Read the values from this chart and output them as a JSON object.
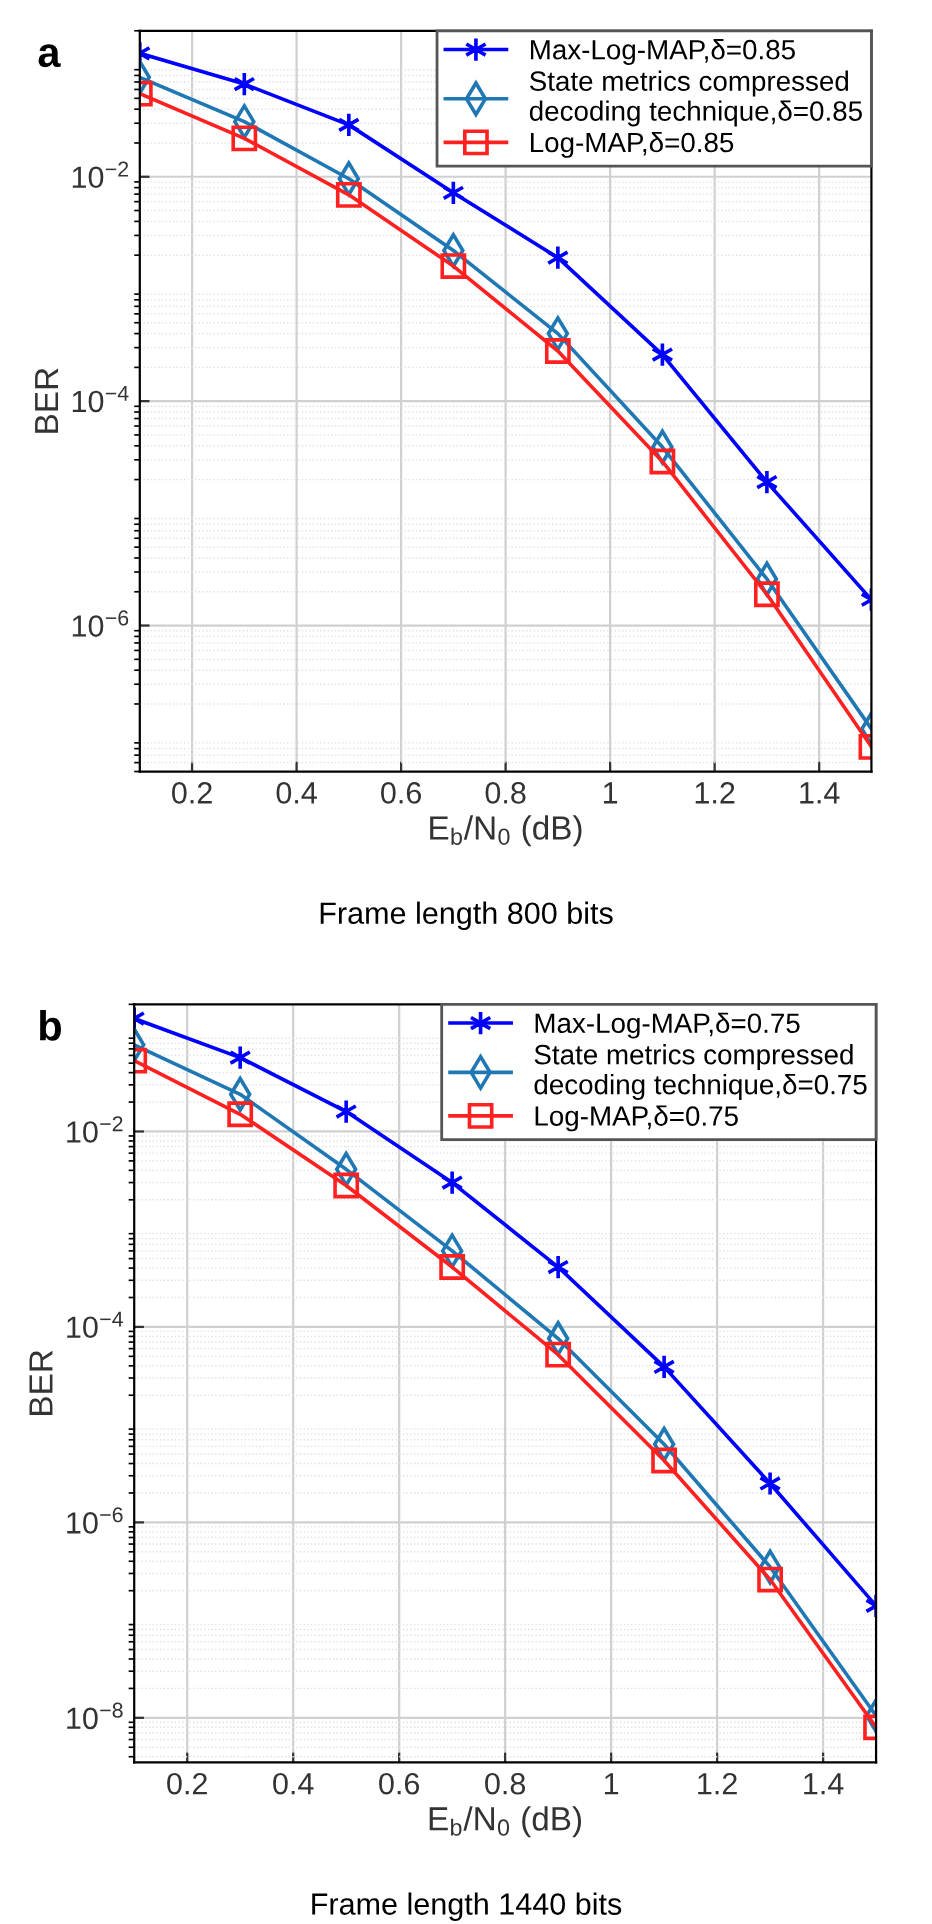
{
  "chart_data": [
    {
      "type": "line",
      "xlabel": "E$_{b}$/N$_{0}$ (dB)",
      "ylabel": "BER",
      "annotations": [
        "a",
        "Frame length 800 bits"
      ],
      "x": [
        0.1,
        0.3,
        0.5,
        0.7,
        0.9,
        1.1,
        1.3,
        1.5
      ],
      "series": [
        {
          "name": "Max-Log-MAP,δ=0.85",
          "color": "#0000ff",
          "marker": "cross",
          "values": [
            0.126,
            0.067,
            0.029,
            0.0072,
            0.0019,
            0.00026,
            1.9e-05,
            1.7e-06
          ]
        },
        {
          "name": "State metrics compressed\ndecoding technique,δ=0.85",
          "color": "#1f78b4",
          "marker": "diamond",
          "values": [
            0.077,
            0.031,
            0.0096,
            0.0022,
            0.0004,
            3.9e-05,
            2.6e-06,
            1.2e-07
          ]
        },
        {
          "name": "Log-MAP,δ=0.85",
          "color": "#ff2020",
          "marker": "square",
          "values": [
            0.055,
            0.022,
            0.0069,
            0.0016,
            0.00028,
            2.9e-05,
            1.9e-06,
            8.3e-08
          ]
        }
      ],
      "log": "y",
      "xlim": [
        0.1,
        1.5
      ],
      "xticks": [
        0.2,
        0.4,
        0.6,
        0.8,
        1,
        1.2,
        1.4
      ],
      "ylim": [
        5e-08,
        0.2
      ],
      "yticks": [
        {
          "value": 0.01,
          "label": "10$^{−2}$"
        },
        {
          "value": 0.0001,
          "label": "10$^{−4}$"
        },
        {
          "value": 1e-06,
          "label": "10$^{−6}$"
        }
      ],
      "grid": true,
      "legend": "top right",
      "line_style": "solid"
    },
    {
      "type": "line",
      "xlabel": "E$_{b}$/N$_{0}$ (dB)",
      "ylabel": "BER",
      "annotations": [
        "b",
        "Frame length 1440 bits"
      ],
      "x": [
        0.1,
        0.3,
        0.5,
        0.7,
        0.9,
        1.1,
        1.3,
        1.5
      ],
      "series": [
        {
          "name": "Max-Log-MAP,δ=0.75",
          "color": "#0000ff",
          "marker": "cross",
          "values": [
            0.143,
            0.057,
            0.016,
            0.003,
            0.00041,
            3.9e-05,
            2.5e-06,
            1.4e-07
          ]
        },
        {
          "name": "State metrics compressed\ndecoding technique,δ=0.75",
          "color": "#1f78b4",
          "marker": "diamond",
          "values": [
            0.077,
            0.024,
            0.0041,
            0.0006,
            7.6e-05,
            6.3e-06,
            3.5e-07,
            1.05e-08
          ]
        },
        {
          "name": "Log-MAP,δ=0.75",
          "color": "#ff2020",
          "marker": "square",
          "values": [
            0.053,
            0.015,
            0.0028,
            0.00041,
            5.2e-05,
            4.3e-06,
            2.6e-07,
            8e-09
          ]
        }
      ],
      "log": "y",
      "xlim": [
        0.1,
        1.5
      ],
      "xticks": [
        0.2,
        0.4,
        0.6,
        0.8,
        1,
        1.2,
        1.4
      ],
      "ylim": [
        3.5e-09,
        0.2
      ],
      "yticks": [
        {
          "value": 0.01,
          "label": "10$^{−2}$"
        },
        {
          "value": 0.0001,
          "label": "10$^{−4}$"
        },
        {
          "value": 1e-06,
          "label": "10$^{−6}$"
        },
        {
          "value": 1e-08,
          "label": "10$^{−8}$"
        }
      ],
      "grid": true,
      "legend": "top right",
      "line_style": "solid"
    }
  ]
}
